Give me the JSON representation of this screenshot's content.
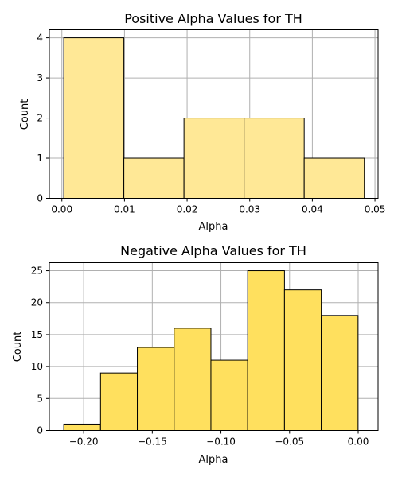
{
  "chart_data": [
    {
      "type": "bar",
      "title": "Positive Alpha Values for TH",
      "xlabel": "Alpha",
      "ylabel": "Count",
      "bins": [
        0.0003,
        0.0099,
        0.0195,
        0.0291,
        0.0387,
        0.0483
      ],
      "counts": [
        4,
        1,
        2,
        2,
        1
      ],
      "xlim": [
        -0.002,
        0.0505
      ],
      "ylim": [
        0,
        4.2
      ],
      "xticks": [
        0.0,
        0.01,
        0.02,
        0.03,
        0.04,
        0.05
      ],
      "xtick_labels": [
        "0.00",
        "0.01",
        "0.02",
        "0.03",
        "0.04",
        "0.05"
      ],
      "yticks": [
        0,
        1,
        2,
        3,
        4
      ],
      "ytick_labels": [
        "0",
        "1",
        "2",
        "3",
        "4"
      ],
      "bar_color": "#ffe896",
      "edge_color": "#000000",
      "grid": true
    },
    {
      "type": "bar",
      "title": "Negative Alpha Values for TH",
      "xlabel": "Alpha",
      "ylabel": "Count",
      "bins": [
        -0.2145,
        -0.1877,
        -0.1609,
        -0.1341,
        -0.1073,
        -0.0805,
        -0.0537,
        -0.0269,
        -0.0001
      ],
      "counts": [
        1,
        9,
        13,
        16,
        11,
        25,
        22,
        18
      ],
      "xlim": [
        -0.225,
        0.0145
      ],
      "ylim": [
        0,
        26.25
      ],
      "xticks": [
        -0.2,
        -0.15,
        -0.1,
        -0.05,
        0.0
      ],
      "xtick_labels": [
        "−0.20",
        "−0.15",
        "−0.10",
        "−0.05",
        "0.00"
      ],
      "yticks": [
        0,
        5,
        10,
        15,
        20,
        25
      ],
      "ytick_labels": [
        "0",
        "5",
        "10",
        "15",
        "20",
        "25"
      ],
      "bar_color": "#ffe05e",
      "edge_color": "#000000",
      "grid": true
    }
  ]
}
